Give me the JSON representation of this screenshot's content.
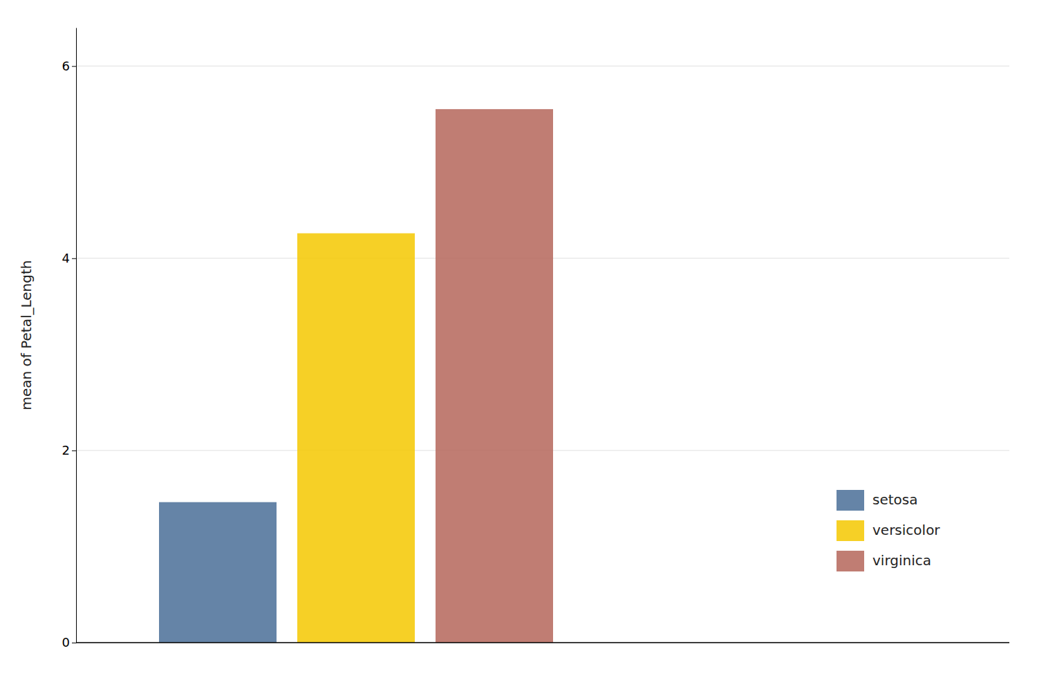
{
  "chart_data": {
    "type": "bar",
    "categories": [
      "setosa",
      "versicolor",
      "virginica"
    ],
    "values": [
      1.462,
      4.26,
      5.552
    ],
    "colors": [
      "#4a6f98",
      "#f5c800",
      "#b5665a"
    ],
    "ylabel": "mean of Petal_Length",
    "ylim": [
      0,
      6.4
    ],
    "yticks": [
      0,
      2,
      4,
      6
    ],
    "grid": true,
    "legend": "lower right",
    "tick_labels": "y"
  }
}
